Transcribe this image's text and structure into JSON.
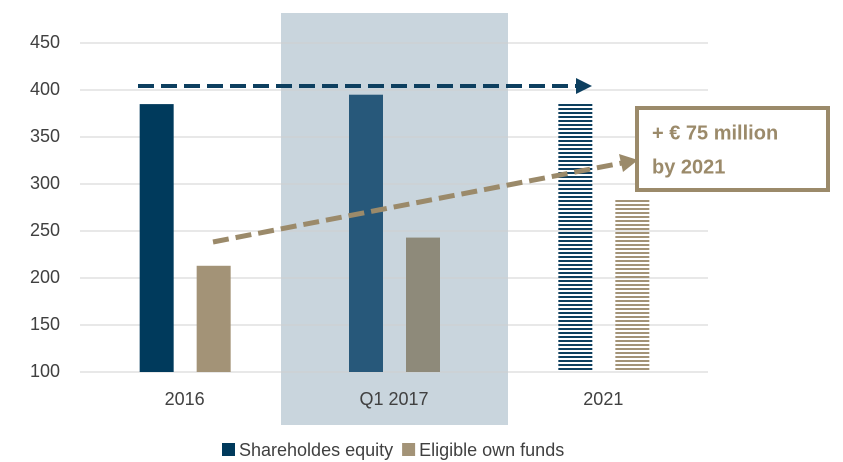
{
  "chart_data": {
    "type": "bar",
    "categories": [
      "2016",
      "Q1 2017",
      "2021"
    ],
    "series": [
      {
        "name": "Shareholdes equity",
        "color": "#003a5c",
        "point_colors": [
          "#003a5c",
          "#27587a",
          "#0d3f5f"
        ],
        "values": [
          385,
          395,
          386
        ]
      },
      {
        "name": "Eligible own funds",
        "color": "#a39377",
        "point_colors": [
          "#a39377",
          "#8e8a7a",
          "#a39377"
        ],
        "values": [
          213,
          243,
          285
        ]
      }
    ],
    "hatched_category": 2,
    "highlight_category": 1,
    "highlight_color": "#c9d5dd",
    "ylim": [
      100,
      450
    ],
    "yticks": [
      100,
      150,
      200,
      250,
      300,
      350,
      400,
      450
    ],
    "grid": true,
    "legend": "bottom",
    "annotation": [
      "+ € 75 million",
      "by 2021"
    ]
  }
}
